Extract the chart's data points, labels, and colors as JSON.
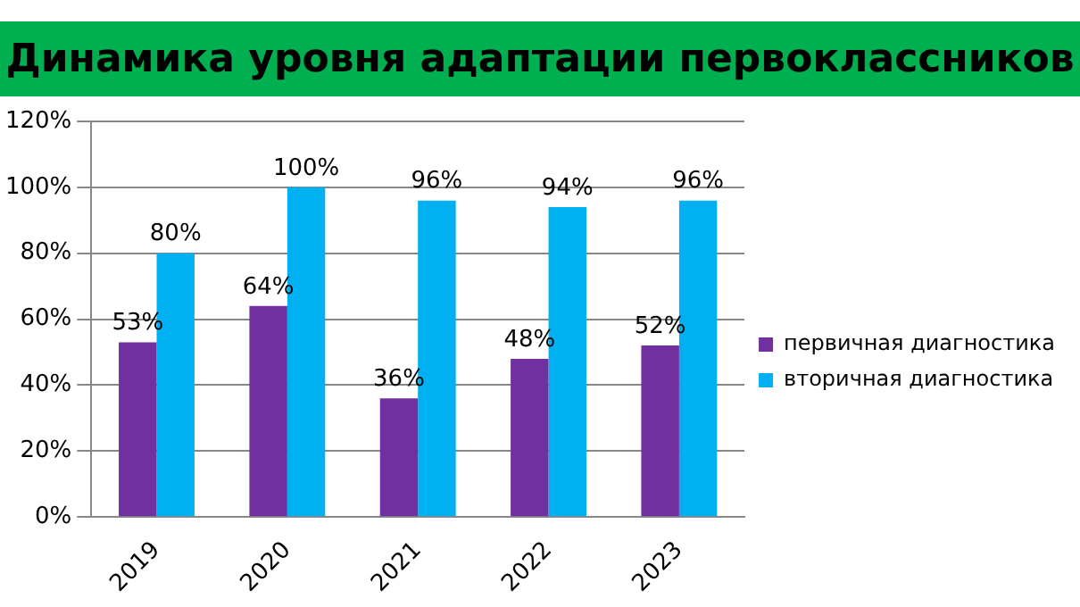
{
  "chart_data": {
    "type": "bar",
    "title": "Динамика уровня адаптации первоклассников",
    "categories": [
      "2019",
      "2020",
      "2021",
      "2022",
      "2023"
    ],
    "series": [
      {
        "name": "первичная диагностика",
        "color": "#7030a0",
        "values": [
          53,
          64,
          36,
          48,
          52
        ],
        "value_labels": [
          "53%",
          "64%",
          "36%",
          "48%",
          "52%"
        ]
      },
      {
        "name": "вторичная диагностика",
        "color": "#00b0f0",
        "values": [
          80,
          100,
          96,
          94,
          96
        ],
        "value_labels": [
          "80%",
          "100%",
          "96%",
          "94%",
          "96%"
        ]
      }
    ],
    "ylim": [
      0,
      120
    ],
    "yticks": [
      {
        "value": 0,
        "label": "0%"
      },
      {
        "value": 20,
        "label": "20%"
      },
      {
        "value": 40,
        "label": "40%"
      },
      {
        "value": 60,
        "label": "60%"
      },
      {
        "value": 80,
        "label": "80%"
      },
      {
        "value": 100,
        "label": "100%"
      },
      {
        "value": 120,
        "label": "120%"
      }
    ],
    "grid": "y",
    "legend": "right"
  }
}
